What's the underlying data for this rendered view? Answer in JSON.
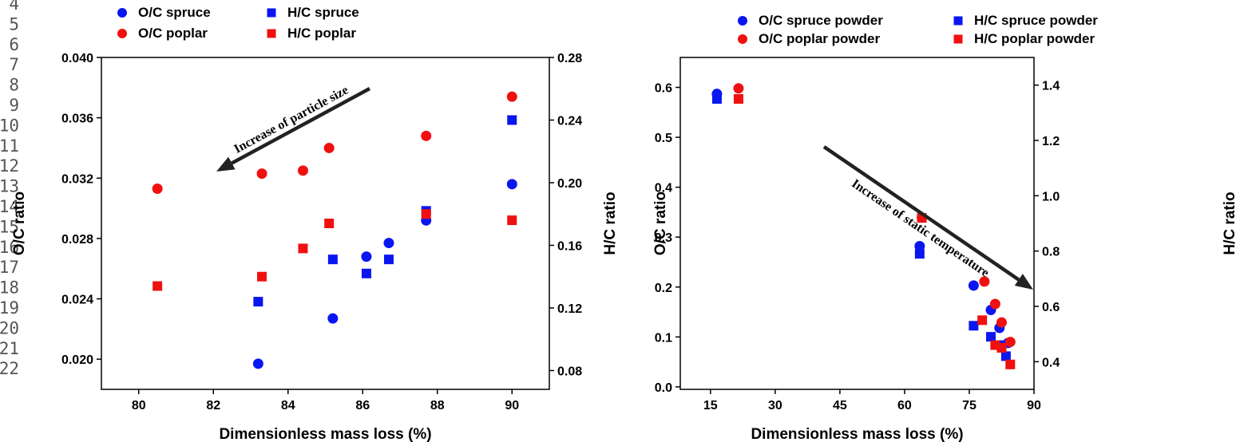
{
  "gutter_numbers": [
    "4",
    "5",
    "6",
    "7",
    "8",
    "9",
    "10",
    "11",
    "12",
    "13",
    "14",
    "15",
    "16",
    "17",
    "18",
    "19",
    "20",
    "21",
    "22"
  ],
  "colors": {
    "blue": "#0a16f0",
    "red": "#f01010",
    "axis": "#000000"
  },
  "chart_data": [
    {
      "type": "scatter",
      "xlabel": "Dimensionless mass loss (%)",
      "ylabel": "O/C ratio",
      "y2label": "H/C ratio",
      "xlim": [
        79,
        91
      ],
      "ylim": [
        0.018,
        0.04
      ],
      "y2lim": [
        0.068,
        0.28
      ],
      "xticks": [
        "80",
        "82",
        "84",
        "86",
        "88",
        "90"
      ],
      "yticks": [
        "0.020",
        "0.024",
        "0.028",
        "0.032",
        "0.036",
        "0.040"
      ],
      "y2ticks": [
        "0.08",
        "0.12",
        "0.16",
        "0.20",
        "0.24",
        "0.28"
      ],
      "legend": [
        "O/C spruce",
        "O/C poplar",
        "H/C spruce",
        "H/C poplar"
      ],
      "legend_position": "top",
      "annotation": "Increase of particle size",
      "series": [
        {
          "name": "O/C spruce",
          "axis": "left",
          "marker": "circle",
          "color": "blue",
          "x": [
            83.2,
            85.2,
            86.1,
            86.7,
            87.7,
            90.0
          ],
          "y": [
            0.0197,
            0.0227,
            0.0268,
            0.0277,
            0.0292,
            0.0316
          ]
        },
        {
          "name": "O/C poplar",
          "axis": "left",
          "marker": "circle",
          "color": "red",
          "x": [
            80.5,
            83.3,
            84.4,
            85.1,
            87.7,
            90.0
          ],
          "y": [
            0.0313,
            0.0323,
            0.0325,
            0.034,
            0.0348,
            0.0374
          ]
        },
        {
          "name": "H/C spruce",
          "axis": "right",
          "marker": "square",
          "color": "blue",
          "x": [
            83.2,
            85.2,
            86.1,
            86.7,
            87.7,
            90.0
          ],
          "y": [
            0.124,
            0.151,
            0.142,
            0.151,
            0.182,
            0.24
          ]
        },
        {
          "name": "H/C poplar",
          "axis": "right",
          "marker": "square",
          "color": "red",
          "x": [
            80.5,
            83.3,
            84.4,
            85.1,
            87.7,
            90.0
          ],
          "y": [
            0.134,
            0.14,
            0.158,
            0.174,
            0.18,
            0.176
          ]
        }
      ]
    },
    {
      "type": "scatter",
      "xlabel": "Dimensionless mass loss (%)",
      "ylabel": "O/C ratio",
      "y2label": "H/C ratio",
      "xlim": [
        8,
        90
      ],
      "ylim": [
        -0.005,
        0.66
      ],
      "y2lim": [
        0.3,
        1.5
      ],
      "xticks": [
        "15",
        "30",
        "45",
        "60",
        "75",
        "90"
      ],
      "yticks": [
        "0.0",
        "0.1",
        "0.2",
        "0.3",
        "0.4",
        "0.5",
        "0.6"
      ],
      "y2ticks": [
        "0.4",
        "0.6",
        "0.8",
        "1.0",
        "1.2",
        "1.4"
      ],
      "legend": [
        "O/C spruce powder",
        "O/C poplar powder",
        "H/C spruce powder",
        "H/C poplar powder"
      ],
      "legend_position": "top",
      "annotation": "Increase of static temperature",
      "series": [
        {
          "name": "O/C spruce powder",
          "axis": "left",
          "marker": "circle",
          "color": "blue",
          "x": [
            16.5,
            63.5,
            76.0,
            80.0,
            82.0,
            84.0
          ],
          "y": [
            0.587,
            0.282,
            0.203,
            0.154,
            0.118,
            0.088
          ]
        },
        {
          "name": "O/C poplar powder",
          "axis": "left",
          "marker": "circle",
          "color": "red",
          "x": [
            21.5,
            64.0,
            78.5,
            81.0,
            82.5,
            84.5
          ],
          "y": [
            0.598,
            0.339,
            0.211,
            0.166,
            0.129,
            0.09
          ]
        },
        {
          "name": "H/C spruce powder",
          "axis": "right",
          "marker": "square",
          "color": "blue",
          "x": [
            16.5,
            63.5,
            76.0,
            80.0,
            82.0,
            83.5
          ],
          "y": [
            1.35,
            0.79,
            0.53,
            0.49,
            0.46,
            0.42
          ]
        },
        {
          "name": "H/C poplar powder",
          "axis": "right",
          "marker": "square",
          "color": "red",
          "x": [
            21.5,
            64.0,
            78.0,
            81.0,
            82.5,
            84.5
          ],
          "y": [
            1.35,
            0.92,
            0.55,
            0.46,
            0.45,
            0.39
          ]
        }
      ]
    }
  ]
}
